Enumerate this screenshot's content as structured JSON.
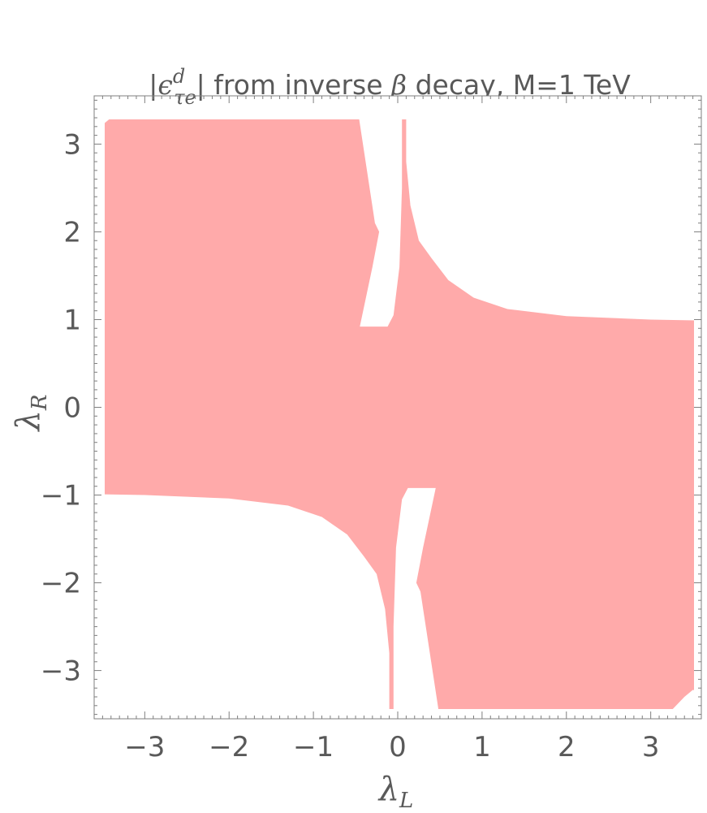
{
  "chart_data": {
    "type": "area",
    "title": "|ϵ_τe^d| from inverse β decay, M=1 TeV",
    "title_parts": {
      "pre": "|",
      "symbol": "ϵ",
      "superscript": "d",
      "subscript": "τe",
      "post": "| from inverse ",
      "beta": "β",
      "rest": " decay, M=1 TeV"
    },
    "xlabel": "λ_L",
    "xlabel_parts": {
      "base": "λ",
      "sub": "L"
    },
    "ylabel": "λ_R",
    "ylabel_parts": {
      "base": "λ",
      "sub": "R"
    },
    "xlim": [
      -3.6,
      3.6
    ],
    "ylim": [
      -3.55,
      3.55
    ],
    "xticks": [
      -3,
      -2,
      -1,
      0,
      1,
      2,
      3
    ],
    "yticks": [
      -3,
      -2,
      -1,
      0,
      1,
      2,
      3
    ],
    "xtick_labels": [
      "−3",
      "−2",
      "−1",
      "0",
      "1",
      "2",
      "3"
    ],
    "ytick_labels": [
      "−3",
      "−2",
      "−1",
      "0",
      "1",
      "2",
      "3"
    ],
    "grid": false,
    "fill_color": "#ffaaaa",
    "frame_color": "#7f7f7f",
    "text_color": "#595959",
    "excluded_regions": [
      {
        "name": "upper-right hyperbola region",
        "points": [
          [
            0.1,
            3.55
          ],
          [
            0.1,
            2.8
          ],
          [
            0.15,
            2.3
          ],
          [
            0.25,
            1.9
          ],
          [
            0.4,
            1.7
          ],
          [
            0.6,
            1.45
          ],
          [
            0.9,
            1.25
          ],
          [
            1.3,
            1.12
          ],
          [
            2.0,
            1.04
          ],
          [
            3.0,
            1.0
          ],
          [
            3.6,
            0.99
          ],
          [
            3.6,
            3.55
          ]
        ]
      },
      {
        "name": "lower-left hyperbola region",
        "points": [
          [
            -0.1,
            -3.55
          ],
          [
            -0.1,
            -2.8
          ],
          [
            -0.15,
            -2.3
          ],
          [
            -0.25,
            -1.9
          ],
          [
            -0.4,
            -1.7
          ],
          [
            -0.6,
            -1.45
          ],
          [
            -0.9,
            -1.25
          ],
          [
            -1.3,
            -1.12
          ],
          [
            -2.0,
            -1.04
          ],
          [
            -3.0,
            -1.0
          ],
          [
            -3.6,
            -0.99
          ],
          [
            -3.6,
            -3.55
          ]
        ]
      },
      {
        "name": "upper-left central notch",
        "points": [
          [
            -0.45,
            0.92
          ],
          [
            -0.3,
            1.6
          ],
          [
            -0.22,
            2.0
          ],
          [
            -0.27,
            2.1
          ],
          [
            -0.5,
            3.55
          ],
          [
            0.05,
            3.55
          ],
          [
            0.05,
            2.5
          ],
          [
            0.02,
            1.6
          ],
          [
            -0.05,
            1.05
          ],
          [
            -0.12,
            0.92
          ]
        ]
      },
      {
        "name": "lower-right central notch",
        "points": [
          [
            0.45,
            -0.92
          ],
          [
            0.3,
            -1.6
          ],
          [
            0.22,
            -2.0
          ],
          [
            0.27,
            -2.1
          ],
          [
            0.5,
            -3.55
          ],
          [
            -0.05,
            -3.55
          ],
          [
            -0.05,
            -2.5
          ],
          [
            -0.02,
            -1.6
          ],
          [
            0.05,
            -1.05
          ],
          [
            0.12,
            -0.92
          ]
        ]
      },
      {
        "name": "top-left corner",
        "points": [
          [
            -3.6,
            3.55
          ],
          [
            -3.6,
            3.25
          ],
          [
            -3.5,
            3.22
          ],
          [
            -3.4,
            3.3
          ],
          [
            -3.25,
            3.45
          ],
          [
            -3.18,
            3.55
          ]
        ]
      },
      {
        "name": "bottom-right corner",
        "points": [
          [
            3.6,
            -3.55
          ],
          [
            3.6,
            -3.25
          ],
          [
            3.5,
            -3.22
          ],
          [
            3.4,
            -3.3
          ],
          [
            3.25,
            -3.45
          ],
          [
            3.18,
            -3.55
          ]
        ]
      }
    ]
  }
}
